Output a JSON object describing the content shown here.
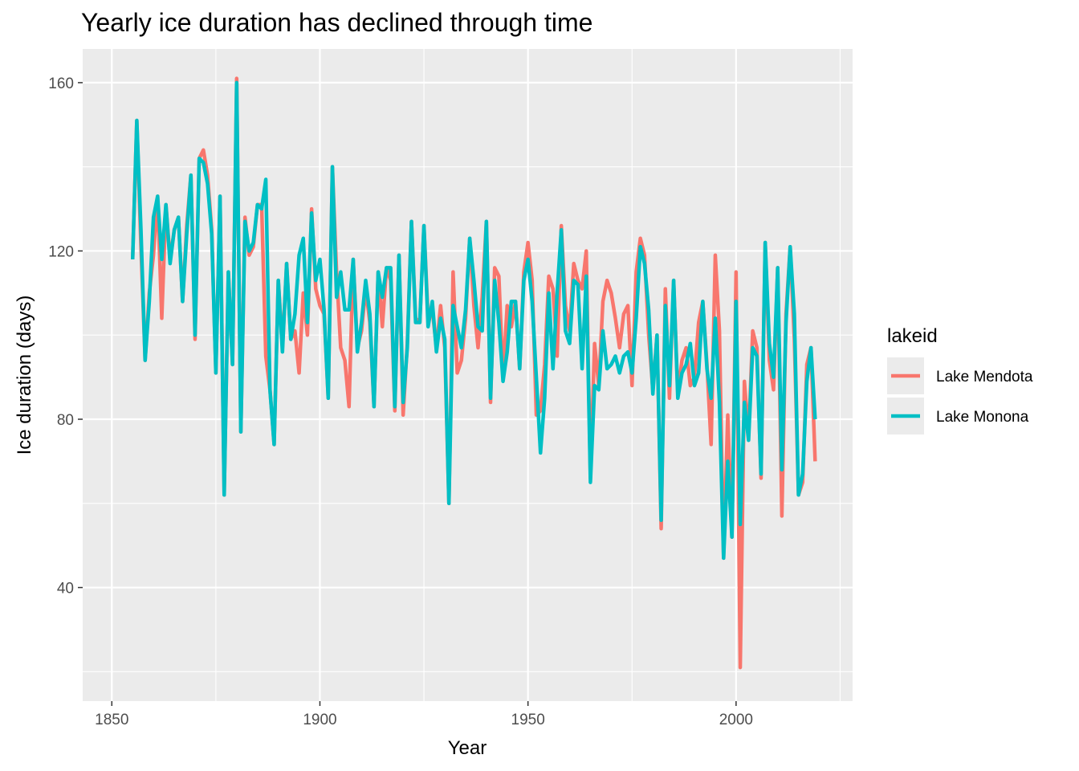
{
  "chart_data": {
    "type": "line",
    "title": "Yearly ice duration has declined through time",
    "xlabel": "Year",
    "ylabel": "Ice duration (days)",
    "xlim": [
      1843,
      2028
    ],
    "ylim": [
      13,
      168
    ],
    "x_ticks": [
      1850,
      1900,
      1950,
      2000
    ],
    "y_ticks": [
      40,
      80,
      120,
      160
    ],
    "grid": true,
    "legend": {
      "title": "lakeid",
      "position": "right"
    },
    "series": [
      {
        "name": "Lake Mendota",
        "color": "#F8766D",
        "x": [
          1855,
          1856,
          1857,
          1858,
          1859,
          1860,
          1861,
          1862,
          1863,
          1864,
          1865,
          1866,
          1867,
          1868,
          1869,
          1870,
          1871,
          1872,
          1873,
          1874,
          1875,
          1876,
          1877,
          1878,
          1879,
          1880,
          1881,
          1882,
          1883,
          1884,
          1885,
          1886,
          1887,
          1888,
          1889,
          1890,
          1891,
          1892,
          1893,
          1894,
          1895,
          1896,
          1897,
          1898,
          1899,
          1900,
          1901,
          1902,
          1903,
          1904,
          1905,
          1906,
          1907,
          1908,
          1909,
          1910,
          1911,
          1912,
          1913,
          1914,
          1915,
          1916,
          1917,
          1918,
          1919,
          1920,
          1921,
          1922,
          1923,
          1924,
          1925,
          1926,
          1927,
          1928,
          1929,
          1930,
          1931,
          1932,
          1933,
          1934,
          1935,
          1936,
          1937,
          1938,
          1939,
          1940,
          1941,
          1942,
          1943,
          1944,
          1945,
          1946,
          1947,
          1948,
          1949,
          1950,
          1951,
          1952,
          1953,
          1954,
          1955,
          1956,
          1957,
          1958,
          1959,
          1960,
          1961,
          1962,
          1963,
          1964,
          1965,
          1966,
          1967,
          1968,
          1969,
          1970,
          1971,
          1972,
          1973,
          1974,
          1975,
          1976,
          1977,
          1978,
          1979,
          1980,
          1981,
          1982,
          1983,
          1984,
          1985,
          1986,
          1987,
          1988,
          1989,
          1990,
          1991,
          1992,
          1993,
          1994,
          1995,
          1996,
          1997,
          1998,
          1999,
          2000,
          2001,
          2002,
          2003,
          2004,
          2005,
          2006,
          2007,
          2008,
          2009,
          2010,
          2011,
          2012,
          2013,
          2014,
          2015,
          2016,
          2017,
          2018,
          2019
        ],
        "y": [
          118,
          151,
          121,
          94,
          110,
          119,
          133,
          104,
          131,
          118,
          125,
          128,
          108,
          126,
          138,
          99,
          142,
          144,
          138,
          125,
          91,
          133,
          62,
          115,
          93,
          161,
          77,
          128,
          119,
          121,
          131,
          131,
          95,
          87,
          74,
          113,
          97,
          117,
          99,
          101,
          91,
          110,
          100,
          130,
          111,
          107,
          105,
          85,
          140,
          115,
          97,
          94,
          83,
          118,
          97,
          101,
          111,
          103,
          83,
          115,
          102,
          116,
          113,
          82,
          119,
          81,
          98,
          127,
          104,
          103,
          126,
          104,
          106,
          97,
          107,
          97,
          60,
          115,
          91,
          94,
          104,
          123,
          107,
          97,
          109,
          127,
          84,
          116,
          114,
          90,
          107,
          102,
          108,
          92,
          115,
          122,
          113,
          81,
          82,
          93,
          114,
          111,
          95,
          126,
          107,
          101,
          117,
          113,
          111,
          120,
          66,
          98,
          88,
          108,
          113,
          110,
          104,
          97,
          105,
          107,
          88,
          115,
          123,
          119,
          100,
          87,
          100,
          54,
          111,
          85,
          113,
          86,
          94,
          97,
          88,
          90,
          103,
          108,
          93,
          74,
          119,
          101,
          47,
          81,
          52,
          115,
          21,
          89,
          76,
          101,
          97,
          66,
          122,
          94,
          87,
          116,
          57,
          105,
          121,
          99,
          62,
          65,
          93,
          97,
          70
        ]
      },
      {
        "name": "Lake Monona",
        "color": "#00BFC4",
        "x": [
          1855,
          1856,
          1857,
          1858,
          1859,
          1860,
          1861,
          1862,
          1863,
          1864,
          1865,
          1866,
          1867,
          1868,
          1869,
          1870,
          1871,
          1872,
          1873,
          1874,
          1875,
          1876,
          1877,
          1878,
          1879,
          1880,
          1881,
          1882,
          1883,
          1884,
          1885,
          1886,
          1887,
          1888,
          1889,
          1890,
          1891,
          1892,
          1893,
          1894,
          1895,
          1896,
          1897,
          1898,
          1899,
          1900,
          1901,
          1902,
          1903,
          1904,
          1905,
          1906,
          1907,
          1908,
          1909,
          1910,
          1911,
          1912,
          1913,
          1914,
          1915,
          1916,
          1917,
          1918,
          1919,
          1920,
          1921,
          1922,
          1923,
          1924,
          1925,
          1926,
          1927,
          1928,
          1929,
          1930,
          1931,
          1932,
          1933,
          1934,
          1935,
          1936,
          1937,
          1938,
          1939,
          1940,
          1941,
          1942,
          1943,
          1944,
          1945,
          1946,
          1947,
          1948,
          1949,
          1950,
          1951,
          1952,
          1953,
          1954,
          1955,
          1956,
          1957,
          1958,
          1959,
          1960,
          1961,
          1962,
          1963,
          1964,
          1965,
          1966,
          1967,
          1968,
          1969,
          1970,
          1971,
          1972,
          1973,
          1974,
          1975,
          1976,
          1977,
          1978,
          1979,
          1980,
          1981,
          1982,
          1983,
          1984,
          1985,
          1986,
          1987,
          1988,
          1989,
          1990,
          1991,
          1992,
          1993,
          1994,
          1995,
          1996,
          1997,
          1998,
          1999,
          2000,
          2001,
          2002,
          2003,
          2004,
          2005,
          2006,
          2007,
          2008,
          2009,
          2010,
          2011,
          2012,
          2013,
          2014,
          2015,
          2016,
          2017,
          2018,
          2019
        ],
        "y": [
          118,
          151,
          125,
          94,
          108,
          128,
          133,
          118,
          131,
          117,
          125,
          128,
          108,
          124,
          138,
          100,
          142,
          141,
          136,
          124,
          91,
          133,
          62,
          115,
          93,
          160,
          77,
          127,
          120,
          122,
          131,
          130,
          137,
          87,
          74,
          113,
          96,
          117,
          99,
          105,
          119,
          123,
          103,
          129,
          113,
          118,
          106,
          85,
          140,
          109,
          115,
          106,
          106,
          118,
          96,
          103,
          113,
          105,
          83,
          115,
          109,
          116,
          116,
          83,
          119,
          84,
          97,
          127,
          103,
          103,
          126,
          102,
          108,
          96,
          104,
          99,
          60,
          107,
          102,
          97,
          106,
          123,
          113,
          102,
          101,
          127,
          85,
          113,
          103,
          89,
          96,
          108,
          108,
          92,
          113,
          118,
          108,
          90,
          72,
          85,
          110,
          92,
          110,
          125,
          101,
          98,
          113,
          112,
          92,
          114,
          65,
          88,
          87,
          101,
          92,
          93,
          95,
          91,
          95,
          96,
          91,
          104,
          121,
          117,
          106,
          86,
          100,
          56,
          107,
          88,
          113,
          85,
          91,
          93,
          98,
          88,
          91,
          108,
          92,
          85,
          104,
          84,
          47,
          70,
          52,
          108,
          55,
          84,
          75,
          97,
          95,
          67,
          122,
          98,
          90,
          116,
          68,
          103,
          121,
          105,
          62,
          67,
          89,
          97,
          80
        ]
      }
    ]
  }
}
